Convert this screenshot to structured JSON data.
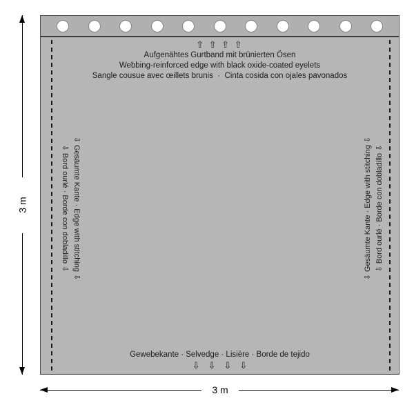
{
  "top_edge": {
    "arrows_label": "⇧ ⇧ ⇧ ⇧",
    "label_de": "Aufgenähtes Gurtband mit brünierten Ösen",
    "label_en": "Webbing-reinforced edge with black oxide-coated eyelets",
    "label_fr_es": "Sangle cousue avec œillets brunis  ·  Cinta cosida con ojales pavonados",
    "eyelet_count": 11
  },
  "side_edges": {
    "line1": "⇩ Gesäumte Kante · Edge with stitching ⇩",
    "line2": "⇩ Bord ourlé · Borde con dobladillo ⇩"
  },
  "bottom_edge": {
    "label": "Gewebekante · Selvedge · Lisière · Borde de tejido",
    "arrows_label": "⇩⇩⇩⇩"
  },
  "dimensions": {
    "width": "3 m",
    "height": "3 m"
  },
  "colors": {
    "background": "#ffffff",
    "fabric": "#b6b6b6",
    "band": "#b0b0b0",
    "eyelet_fill": "#ffffff",
    "eyelet_ring": "#848484",
    "edge_line": "#4f4f4f",
    "band_line": "#3a3a3a",
    "stitch": "#1c1c1c",
    "text": "#1c1c1c",
    "dimension": "#000000"
  }
}
